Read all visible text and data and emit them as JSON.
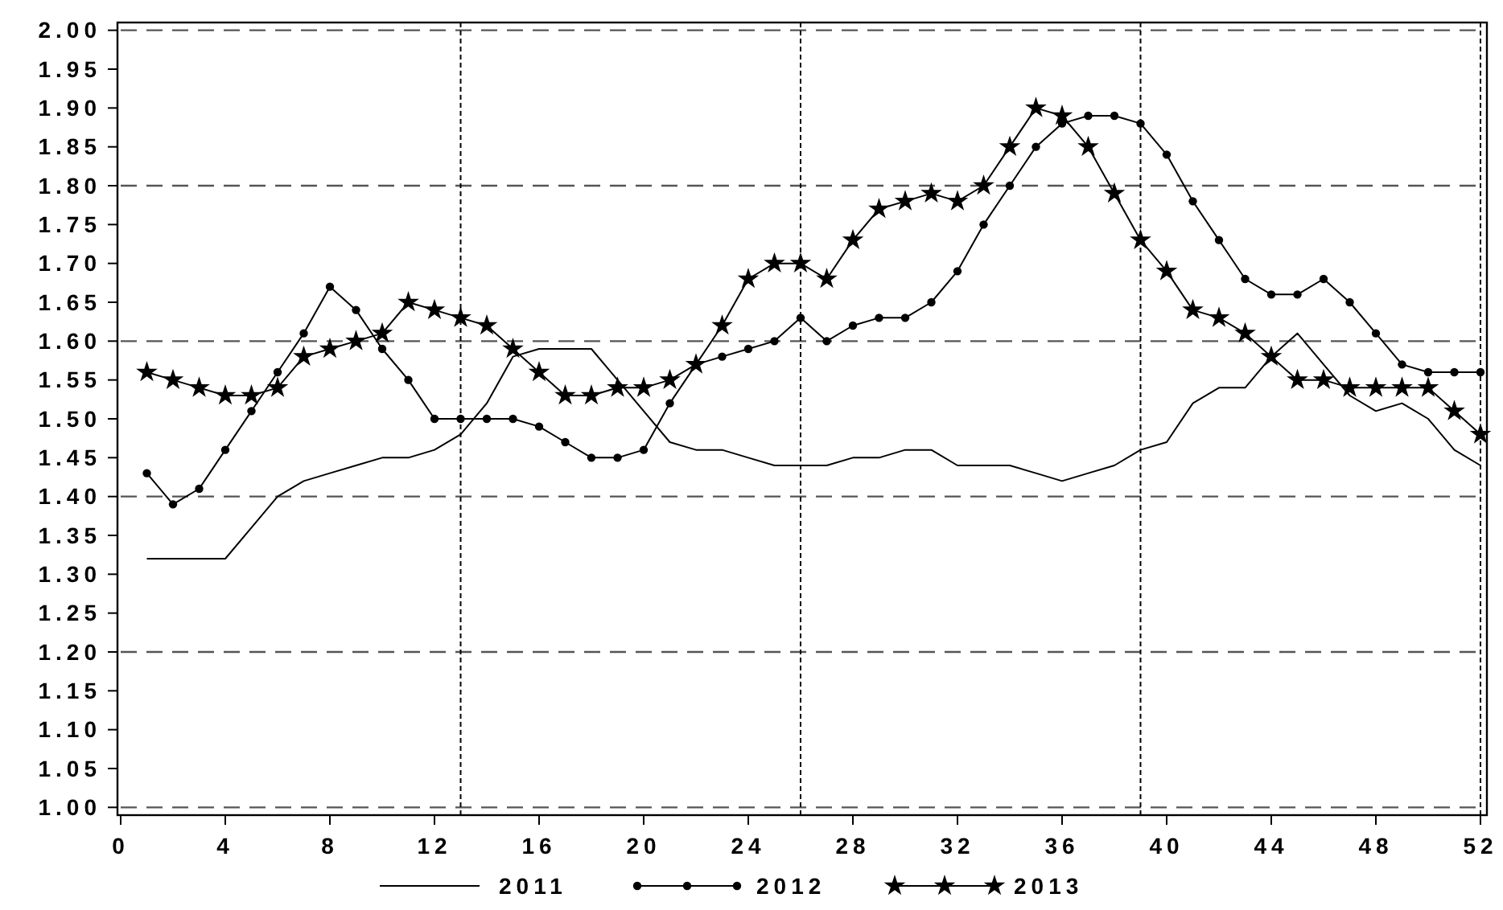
{
  "chart_data": {
    "type": "line",
    "x": [
      1,
      2,
      3,
      4,
      5,
      6,
      7,
      8,
      9,
      10,
      11,
      12,
      13,
      14,
      15,
      16,
      17,
      18,
      19,
      20,
      21,
      22,
      23,
      24,
      25,
      26,
      27,
      28,
      29,
      30,
      31,
      32,
      33,
      34,
      35,
      36,
      37,
      38,
      39,
      40,
      41,
      42,
      43,
      44,
      45,
      46,
      47,
      48,
      49,
      50,
      51,
      52
    ],
    "xlim": [
      0,
      52
    ],
    "xticks": [
      0,
      4,
      8,
      12,
      16,
      20,
      24,
      28,
      32,
      36,
      40,
      44,
      48,
      52
    ],
    "ylim": [
      0.99,
      2.01
    ],
    "yticks": [
      {
        "value": 1,
        "label": "1.00"
      },
      1.05,
      {
        "value": 1.1,
        "label": "1.10"
      },
      1.15,
      {
        "value": 1.2,
        "label": "1.20"
      },
      1.25,
      {
        "value": 1.3,
        "label": "1.30"
      },
      1.35,
      {
        "value": 1.4,
        "label": "1.40"
      },
      1.45,
      {
        "value": 1.5,
        "label": "1.50"
      },
      1.55,
      {
        "value": 1.6,
        "label": "1.60"
      },
      1.65,
      {
        "value": 1.7,
        "label": "1.70"
      },
      1.75,
      {
        "value": 1.8,
        "label": "1.80"
      },
      1.85,
      {
        "value": 1.9,
        "label": "1.90"
      },
      1.95,
      {
        "value": 2,
        "label": "2.00"
      }
    ],
    "legend": "bottom",
    "series": [
      {
        "name": "2011",
        "color": "#000000",
        "marker": "none",
        "values": [
          1.32,
          1.32,
          1.32,
          1.32,
          1.36,
          1.4,
          1.42,
          1.43,
          1.44,
          1.45,
          1.45,
          1.46,
          1.48,
          1.52,
          1.58,
          1.59,
          1.59,
          1.59,
          1.55,
          1.51,
          1.47,
          1.46,
          1.46,
          1.45,
          1.44,
          1.44,
          1.44,
          1.45,
          1.45,
          1.46,
          1.46,
          1.44,
          1.44,
          1.44,
          1.43,
          1.42,
          1.43,
          1.44,
          1.46,
          1.47,
          1.52,
          1.54,
          1.54,
          1.58,
          1.61,
          1.57,
          1.53,
          1.51,
          1.52,
          1.5,
          1.46,
          1.44
        ]
      },
      {
        "name": "2012",
        "color": "#000000",
        "marker": "circle",
        "values": [
          1.43,
          1.39,
          1.41,
          1.46,
          1.51,
          1.56,
          1.61,
          1.67,
          1.64,
          1.59,
          1.55,
          1.5,
          1.5,
          1.5,
          1.5,
          1.49,
          1.47,
          1.45,
          1.45,
          1.46,
          1.52,
          1.57,
          1.58,
          1.59,
          1.6,
          1.63,
          1.6,
          1.62,
          1.63,
          1.63,
          1.65,
          1.69,
          1.75,
          1.8,
          1.85,
          1.88,
          1.89,
          1.89,
          1.88,
          1.84,
          1.78,
          1.73,
          1.68,
          1.66,
          1.66,
          1.68,
          1.65,
          1.61,
          1.57,
          1.56,
          1.56,
          1.56
        ]
      },
      {
        "name": "2013",
        "color": "#000000",
        "marker": "star",
        "values": [
          1.56,
          1.55,
          1.54,
          1.53,
          1.53,
          1.54,
          1.58,
          1.59,
          1.6,
          1.61,
          1.65,
          1.64,
          1.63,
          1.62,
          1.59,
          1.56,
          1.53,
          1.53,
          1.54,
          1.54,
          1.55,
          1.57,
          1.62,
          1.68,
          1.7,
          1.7,
          1.68,
          1.73,
          1.77,
          1.78,
          1.79,
          1.78,
          1.8,
          1.85,
          1.9,
          1.89,
          1.85,
          1.79,
          1.73,
          1.69,
          1.64,
          1.63,
          1.61,
          1.58,
          1.55,
          1.55,
          1.54,
          1.54,
          1.54,
          1.54,
          1.51,
          1.48
        ]
      }
    ],
    "ref_lines": [
      {
        "axis": "y",
        "value": 1.0,
        "color": "#555555",
        "line_style": "dashed"
      },
      {
        "axis": "y",
        "value": 1.2,
        "color": "#555555",
        "line_style": "dashed"
      },
      {
        "axis": "y",
        "value": 1.4,
        "color": "#555555",
        "line_style": "dashed"
      },
      {
        "axis": "y",
        "value": 1.6,
        "color": "#555555",
        "line_style": "dashed"
      },
      {
        "axis": "y",
        "value": 1.8,
        "color": "#555555",
        "line_style": "dashed"
      },
      {
        "axis": "y",
        "value": 2.0,
        "color": "#555555",
        "line_style": "dashed"
      },
      {
        "axis": "x",
        "value": 13,
        "color": "#000000",
        "line_style": "dotted"
      },
      {
        "axis": "x",
        "value": 26,
        "color": "#000000",
        "line_style": "dotted"
      },
      {
        "axis": "x",
        "value": 39,
        "color": "#000000",
        "line_style": "dotted"
      },
      {
        "axis": "x",
        "value": 52,
        "color": "#000000",
        "line_style": "dotted"
      }
    ]
  }
}
